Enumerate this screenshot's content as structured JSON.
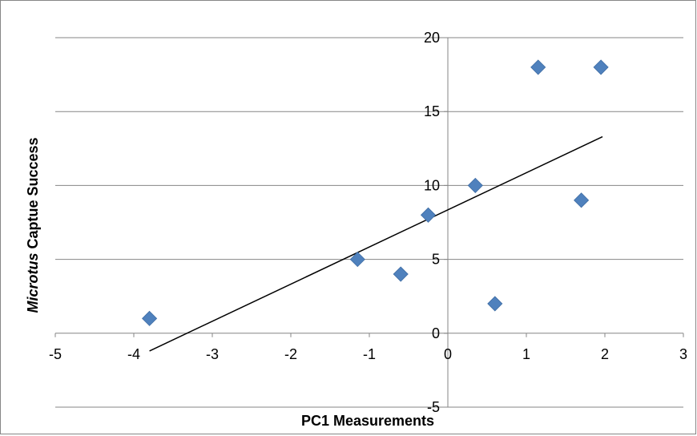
{
  "chart_data": {
    "type": "scatter",
    "xlabel": "PC1 Measurements",
    "ylabel_italic": "Microtus",
    "ylabel_rest": " Captue Success",
    "xlim": [
      -5,
      3
    ],
    "ylim": [
      -5,
      20
    ],
    "x_ticks": [
      -5,
      -4,
      -3,
      -2,
      -1,
      0,
      1,
      2,
      3
    ],
    "y_ticks": [
      -5,
      0,
      5,
      10,
      15,
      20
    ],
    "grid": "horizontal",
    "legend": "none",
    "marker": "diamond",
    "marker_color": "#4f81bd",
    "series": [
      {
        "x": [
          -3.8,
          -1.15,
          -0.6,
          -0.25,
          0.35,
          0.6,
          1.15,
          1.7,
          1.95
        ],
        "y": [
          1,
          5,
          4,
          8,
          10,
          2,
          18,
          9,
          18
        ]
      }
    ],
    "trendline": {
      "type": "linear",
      "color": "#000000",
      "x_start": -3.8,
      "y_start": -1.2,
      "x_end": 1.97,
      "y_end": 13.3
    }
  }
}
